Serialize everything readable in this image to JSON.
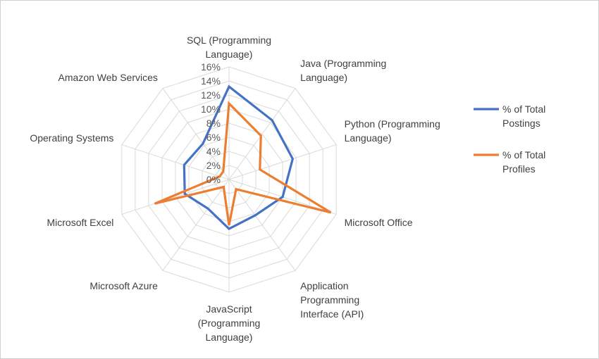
{
  "chart_data": {
    "type": "radar",
    "title": "",
    "rticks": [
      "0%",
      "2%",
      "4%",
      "6%",
      "8%",
      "10%",
      "12%",
      "14%",
      "16%"
    ],
    "rlim": [
      0,
      16
    ],
    "categories": [
      "SQL (Programming Language)",
      "Java (Programming Language)",
      "Python (Programming Language)",
      "Microsoft Office",
      "Application Programming Interface (API)",
      "JavaScript (Programming Language)",
      "Microsoft Azure",
      "Microsoft Excel",
      "Operating Systems",
      "Amazon Web Services"
    ],
    "category_lines": [
      [
        "SQL (Programming",
        "Language)"
      ],
      [
        "Java (Programming",
        "Language)"
      ],
      [
        "Python (Programming",
        "Language)"
      ],
      [
        "Microsoft Office"
      ],
      [
        "Application",
        "Programming",
        "Interface (API)"
      ],
      [
        "JavaScript",
        "(Programming",
        "Language)"
      ],
      [
        "Microsoft Azure"
      ],
      [
        "Microsoft Excel"
      ],
      [
        "Operating Systems"
      ],
      [
        "Amazon Web Services"
      ]
    ],
    "series": [
      {
        "name": "% of Total Postings",
        "legend_lines": [
          "% of Total",
          "Postings"
        ],
        "color": "#4472C4",
        "values": [
          13.2,
          10.4,
          9.5,
          8.0,
          6.3,
          7.0,
          5.1,
          6.6,
          6.7,
          6.3
        ]
      },
      {
        "name": "% of Total Profiles",
        "legend_lines": [
          "% of Total",
          "Profiles"
        ],
        "color": "#ED7D31",
        "values": [
          10.8,
          7.7,
          4.6,
          15.2,
          1.7,
          6.5,
          1.3,
          11.1,
          1.4,
          1.4
        ]
      }
    ],
    "legend_position": "right",
    "grid": true
  }
}
